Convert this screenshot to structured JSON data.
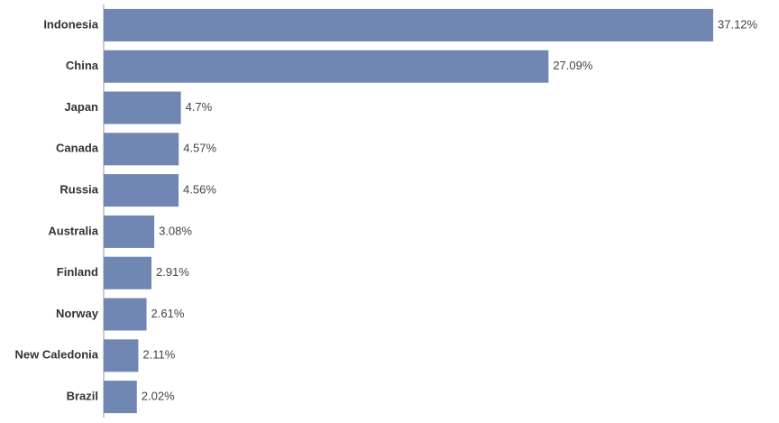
{
  "chart_data": {
    "type": "bar",
    "orientation": "horizontal",
    "categories": [
      "Indonesia",
      "China",
      "Japan",
      "Canada",
      "Russia",
      "Australia",
      "Finland",
      "Norway",
      "New Caledonia",
      "Brazil"
    ],
    "values": [
      37.12,
      27.09,
      4.7,
      4.57,
      4.56,
      3.08,
      2.91,
      2.61,
      2.11,
      2.02
    ],
    "value_labels": [
      "37.12%",
      "27.09%",
      "4.7%",
      "4.57%",
      "4.56%",
      "3.08%",
      "2.91%",
      "2.61%",
      "2.11%",
      "2.02%"
    ],
    "color": "#6f87b2"
  }
}
